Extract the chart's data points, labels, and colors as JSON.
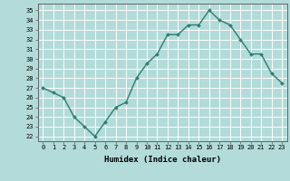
{
  "x": [
    0,
    1,
    2,
    3,
    4,
    5,
    6,
    7,
    8,
    9,
    10,
    11,
    12,
    13,
    14,
    15,
    16,
    17,
    18,
    19,
    20,
    21,
    22,
    23
  ],
  "y": [
    27,
    26.5,
    26,
    24,
    23,
    22,
    23.5,
    25,
    25.5,
    28,
    29.5,
    30.5,
    32.5,
    32.5,
    33.5,
    33.5,
    35,
    34,
    33.5,
    32,
    30.5,
    30.5,
    28.5,
    27.5
  ],
  "line_color": "#2e7d72",
  "marker": "D",
  "marker_size": 2.0,
  "background_color": "#b2dbd9",
  "grid_color": "#ffffff",
  "xlabel": "Humidex (Indice chaleur)",
  "xlim": [
    -0.5,
    23.5
  ],
  "ylim": [
    21.5,
    35.7
  ],
  "yticks": [
    22,
    23,
    24,
    25,
    26,
    27,
    28,
    29,
    30,
    31,
    32,
    33,
    34,
    35
  ],
  "xtick_labels": [
    "0",
    "1",
    "2",
    "3",
    "4",
    "5",
    "6",
    "7",
    "8",
    "9",
    "10",
    "11",
    "12",
    "13",
    "14",
    "15",
    "16",
    "17",
    "18",
    "19",
    "20",
    "21",
    "22",
    "23"
  ],
  "font_color": "#000000",
  "line_width": 1.0,
  "tick_fontsize": 5.0,
  "xlabel_fontsize": 6.5
}
